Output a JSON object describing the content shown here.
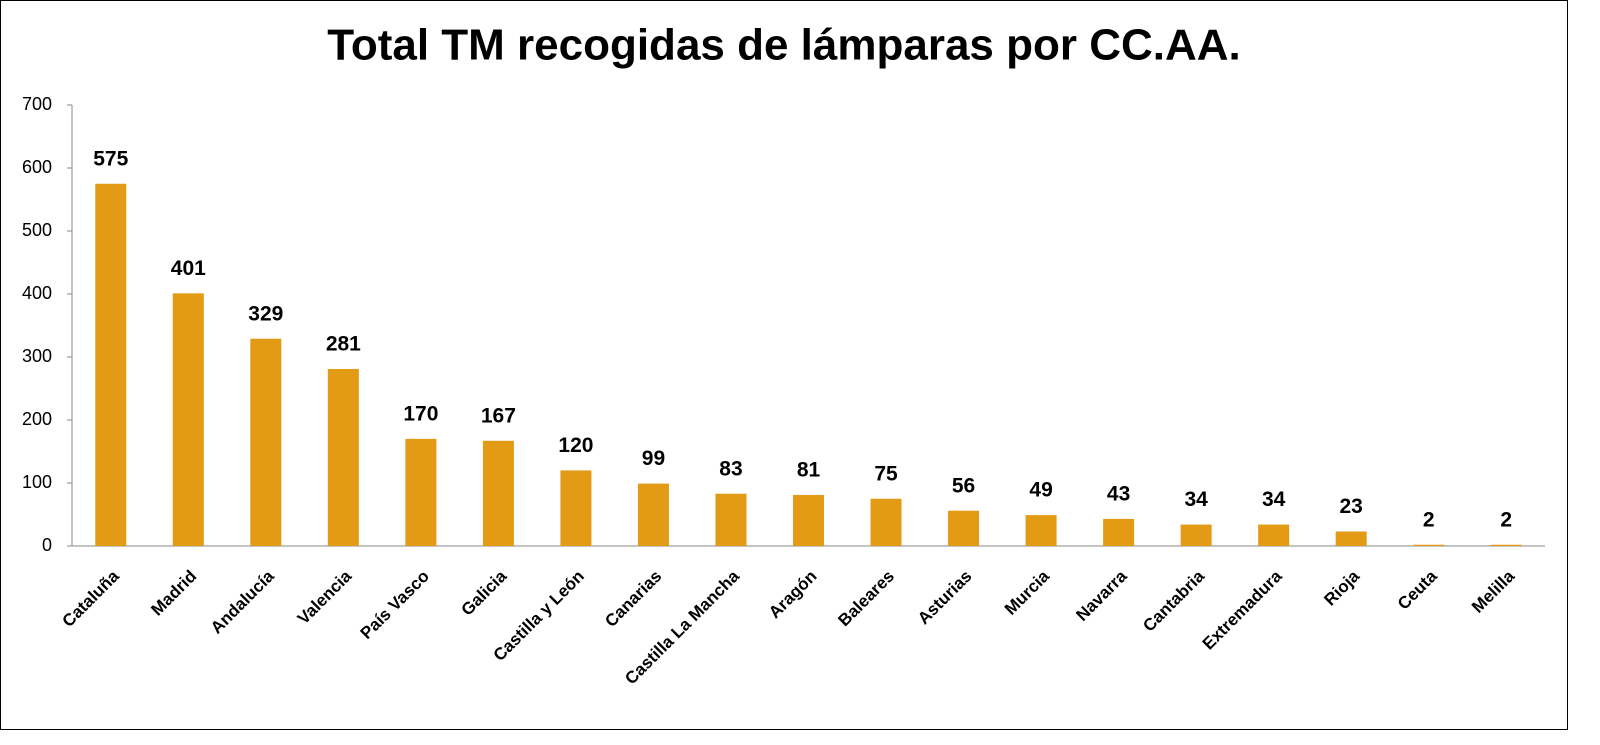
{
  "chart_data": {
    "type": "bar",
    "title": "Total TM recogidas de lámparas por CC.AA.",
    "categories": [
      "Cataluña",
      "Madrid",
      "Andalucía",
      "Valencia",
      "País Vasco",
      "Galicia",
      "Castilla y León",
      "Canarias",
      "Castilla La Mancha",
      "Aragón",
      "Baleares",
      "Asturias",
      "Murcia",
      "Navarra",
      "Cantabria",
      "Extremadura",
      "Rioja",
      "Ceuta",
      "Melilla"
    ],
    "values": [
      575,
      401,
      329,
      281,
      170,
      167,
      120,
      99,
      83,
      81,
      75,
      56,
      49,
      43,
      34,
      34,
      23,
      2,
      2
    ],
    "color": "#e39a14",
    "ylim": [
      0,
      700
    ],
    "yticks": [
      0,
      100,
      200,
      300,
      400,
      500,
      600,
      700
    ],
    "grid": false
  }
}
